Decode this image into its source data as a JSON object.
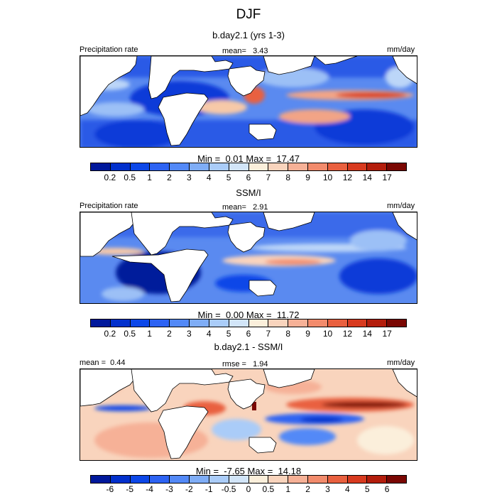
{
  "title": "DJF",
  "panels": [
    {
      "subtitle": "b.day2.1 (yrs 1-3)",
      "left_label": "Precipitation rate",
      "center_label": "mean=",
      "center_value": "3.43",
      "units": "mm/day",
      "min_label": "Min =",
      "min_value": "0.01",
      "max_label": "Max =",
      "max_value": "17.47",
      "colorbar": {
        "labels": [
          "0.2",
          "0.5",
          "1",
          "2",
          "3",
          "4",
          "5",
          "6",
          "7",
          "8",
          "9",
          "10",
          "12",
          "14",
          "17"
        ],
        "colors": [
          "#00189b",
          "#0230cc",
          "#0c47e8",
          "#2d63f3",
          "#5389f7",
          "#7fadf6",
          "#aaccf8",
          "#d2e5f8",
          "#fbefdb",
          "#f9d4bd",
          "#f6b197",
          "#f28b6c",
          "#e9603f",
          "#d83a1f",
          "#b31d0c",
          "#7a0703"
        ]
      }
    },
    {
      "subtitle": "SSM/I",
      "left_label": "Precipitation rate",
      "center_label": "mean=",
      "center_value": "2.91",
      "units": "mm/day",
      "min_label": "Min =",
      "min_value": "0.00",
      "max_label": "Max =",
      "max_value": "11.72",
      "colorbar": {
        "labels": [
          "0.2",
          "0.5",
          "1",
          "2",
          "3",
          "4",
          "5",
          "6",
          "7",
          "8",
          "9",
          "10",
          "12",
          "14",
          "17"
        ],
        "colors": [
          "#00189b",
          "#0230cc",
          "#0c47e8",
          "#2d63f3",
          "#5389f7",
          "#7fadf6",
          "#aaccf8",
          "#d2e5f8",
          "#fbefdb",
          "#f9d4bd",
          "#f6b197",
          "#f28b6c",
          "#e9603f",
          "#d83a1f",
          "#b31d0c",
          "#7a0703"
        ]
      }
    },
    {
      "subtitle": "b.day2.1 - SSM/I",
      "left_label": "mean =",
      "left_value": "0.44",
      "center_label": "rmse =",
      "center_value": "1.94",
      "units": "mm/day",
      "min_label": "Min =",
      "min_value": "-7.65",
      "max_label": "Max =",
      "max_value": "14.18",
      "colorbar": {
        "labels": [
          "-6",
          "-5",
          "-4",
          "-3",
          "-2",
          "-1",
          "-0.5",
          "0",
          "0.5",
          "1",
          "2",
          "3",
          "4",
          "5",
          "6"
        ],
        "colors": [
          "#00189b",
          "#0230cc",
          "#0c47e8",
          "#2d63f3",
          "#5389f7",
          "#7fadf6",
          "#aaccf8",
          "#d2e5f8",
          "#fbefdb",
          "#f9d4bd",
          "#f6b197",
          "#f28b6c",
          "#e9603f",
          "#d83a1f",
          "#b31d0c",
          "#7a0703"
        ]
      }
    }
  ]
}
